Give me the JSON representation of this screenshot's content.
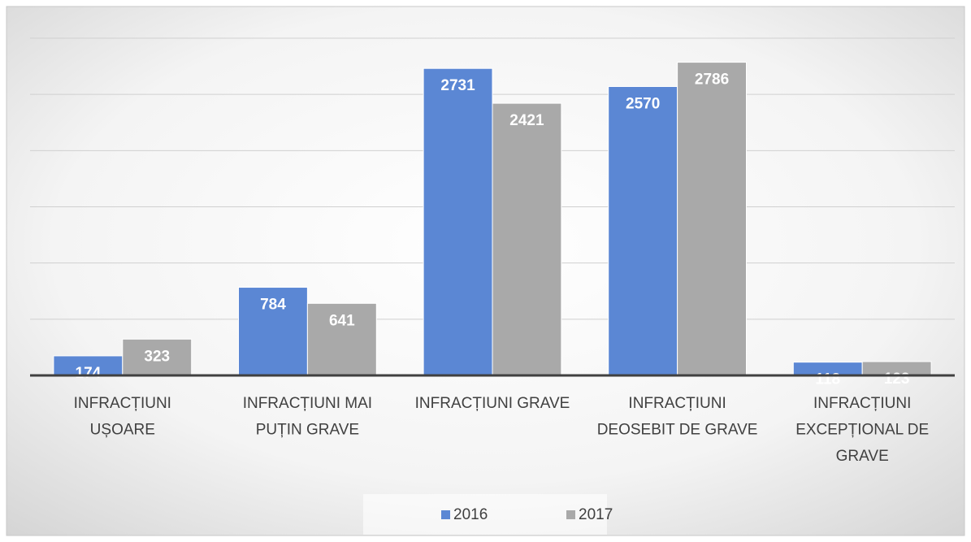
{
  "chart_data": {
    "type": "bar",
    "categories": [
      "INFRACȚIUNI UȘOARE",
      "INFRACȚIUNI MAI PUȚIN GRAVE",
      "INFRACȚIUNI GRAVE",
      "INFRACȚIUNI DEOSEBIT DE GRAVE",
      "INFRACȚIUNI EXCEPȚIONAL DE GRAVE"
    ],
    "series": [
      {
        "name": "2016",
        "color": "#5b87d4",
        "values": [
          174,
          784,
          2731,
          2570,
          118
        ]
      },
      {
        "name": "2017",
        "color": "#a9a9a9",
        "values": [
          323,
          641,
          2421,
          2786,
          123
        ]
      }
    ],
    "ylim": [
      0,
      3000
    ],
    "yticks": [
      0,
      500,
      1000,
      1500,
      2000,
      2500,
      3000
    ],
    "grid": true,
    "legend": "bottom"
  }
}
